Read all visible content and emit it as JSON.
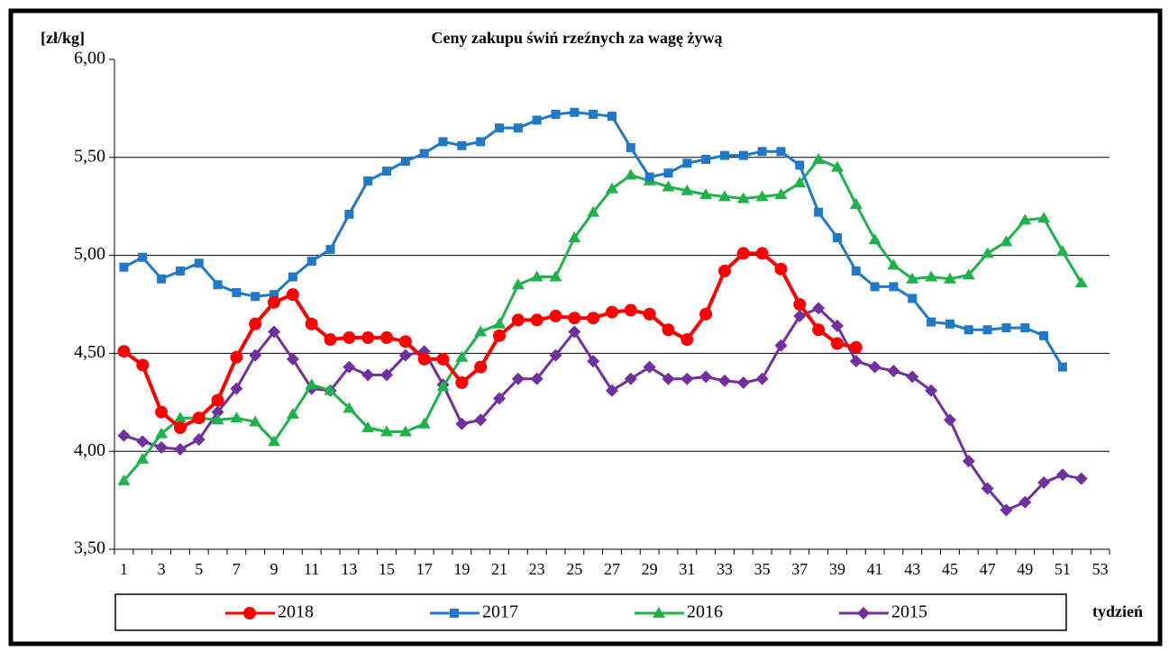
{
  "chart_data": {
    "type": "line",
    "title": "Ceny zakupu świń rzeźnych  za wagę żywą",
    "y_label": "[zł/kg]",
    "x_label": "tydzień",
    "categories": [
      "1",
      null,
      "3",
      null,
      "5",
      null,
      "7",
      null,
      "9",
      null,
      "11",
      null,
      "13",
      null,
      "15",
      null,
      "17",
      null,
      "19",
      null,
      "21",
      null,
      "23",
      null,
      "25",
      null,
      "27",
      null,
      "29",
      null,
      "31",
      null,
      "33",
      null,
      "35",
      null,
      "37",
      null,
      "39",
      null,
      "41",
      null,
      "43",
      null,
      "45",
      null,
      "47",
      null,
      "49",
      null,
      "51",
      null,
      "53"
    ],
    "ylim": [
      3.5,
      6.0
    ],
    "yticks": [
      {
        "value": 3.5,
        "label": "3,50"
      },
      {
        "value": 4.0,
        "label": "4,00"
      },
      {
        "value": 4.5,
        "label": "4,50"
      },
      {
        "value": 5.0,
        "label": "5,00"
      },
      {
        "value": 5.5,
        "label": "5,50"
      },
      {
        "value": 6.0,
        "label": "6,00"
      }
    ],
    "grid": true,
    "series": [
      {
        "name": "2018",
        "color": "#ff0000",
        "marker": "circle",
        "values": [
          4.51,
          4.44,
          4.2,
          4.12,
          4.17,
          4.26,
          4.48,
          4.65,
          4.76,
          4.8,
          4.65,
          4.57,
          4.58,
          4.58,
          4.58,
          4.56,
          4.47,
          4.47,
          4.35,
          4.43,
          4.59,
          4.67,
          4.67,
          4.69,
          4.68,
          4.68,
          4.71,
          4.72,
          4.7,
          4.62,
          4.57,
          4.7,
          4.92,
          5.01,
          5.01,
          4.93,
          4.75,
          4.62,
          4.55,
          4.53,
          null,
          null,
          null,
          null,
          null,
          null,
          null,
          null,
          null,
          null,
          null,
          null,
          null
        ]
      },
      {
        "name": "2017",
        "color": "#1f78c8",
        "marker": "square",
        "values": [
          4.94,
          4.99,
          4.88,
          4.92,
          4.96,
          4.85,
          4.81,
          4.79,
          4.8,
          4.89,
          4.97,
          5.03,
          5.21,
          5.38,
          5.43,
          5.48,
          5.52,
          5.58,
          5.56,
          5.58,
          5.65,
          5.65,
          5.69,
          5.72,
          5.73,
          5.72,
          5.71,
          5.55,
          5.4,
          5.42,
          5.47,
          5.49,
          5.51,
          5.51,
          5.53,
          5.53,
          5.46,
          5.22,
          5.09,
          4.92,
          4.84,
          4.84,
          4.78,
          4.66,
          4.65,
          4.62,
          4.62,
          4.63,
          4.63,
          4.59,
          4.43,
          null,
          null
        ]
      },
      {
        "name": "2016",
        "color": "#1db34a",
        "marker": "triangle",
        "values": [
          3.85,
          3.96,
          4.09,
          4.17,
          4.17,
          4.16,
          4.17,
          4.15,
          4.05,
          4.19,
          4.34,
          4.31,
          4.22,
          4.12,
          4.1,
          4.1,
          4.14,
          4.33,
          4.48,
          4.61,
          4.65,
          4.85,
          4.89,
          4.89,
          5.09,
          5.22,
          5.34,
          5.41,
          5.38,
          5.35,
          5.33,
          5.31,
          5.3,
          5.29,
          5.3,
          5.31,
          5.37,
          5.49,
          5.45,
          5.26,
          5.08,
          4.95,
          4.88,
          4.89,
          4.88,
          4.9,
          5.01,
          5.07,
          5.18,
          5.19,
          5.02,
          4.86,
          null
        ]
      },
      {
        "name": "2015",
        "color": "#7030a0",
        "marker": "diamond",
        "values": [
          4.08,
          4.05,
          4.02,
          4.01,
          4.06,
          4.2,
          4.32,
          4.49,
          4.61,
          4.47,
          4.32,
          4.31,
          4.43,
          4.39,
          4.39,
          4.49,
          4.51,
          4.34,
          4.14,
          4.16,
          4.27,
          4.37,
          4.37,
          4.49,
          4.61,
          4.46,
          4.31,
          4.37,
          4.43,
          4.37,
          4.37,
          4.38,
          4.36,
          4.35,
          4.37,
          4.54,
          4.69,
          4.73,
          4.64,
          4.46,
          4.43,
          4.41,
          4.38,
          4.31,
          4.16,
          3.95,
          3.81,
          3.7,
          3.74,
          3.84,
          3.88,
          3.86,
          null
        ]
      }
    ]
  }
}
